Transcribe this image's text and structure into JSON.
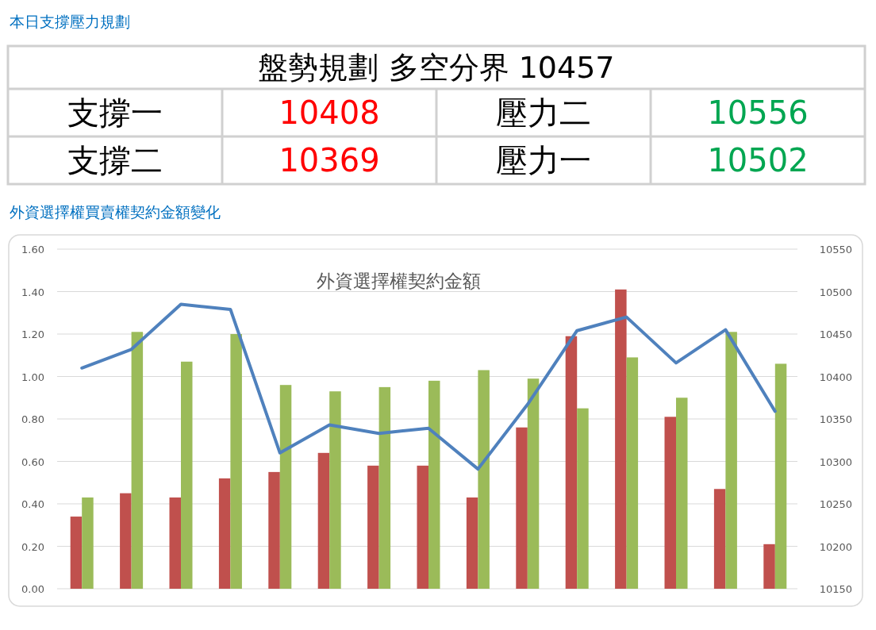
{
  "chart_data": [
    {
      "type": "other",
      "title": "本日支撐壓力規劃",
      "annotations": [
        "盤勢規劃 多空分界 10457",
        "支撐一",
        "10408",
        "壓力二",
        "10556",
        "支撐二",
        "10369",
        "壓力一",
        "10502"
      ],
      "colors": [
        "#000000",
        "#000000",
        "#ff0000",
        "#000000",
        "#00a651",
        "#000000",
        "#ff0000",
        "#000000",
        "#00a651"
      ]
    },
    {
      "type": "bar",
      "title": "外資選擇權買賣權契約金額變化",
      "subtitle": "外資選擇權契約金額",
      "categories": [
        null,
        null,
        null,
        null,
        null,
        null,
        null,
        null,
        null,
        null,
        null,
        null,
        null,
        null,
        null
      ],
      "series": [
        {
          "color": "#c0504d",
          "values": [
            0.34,
            0.45,
            0.43,
            0.52,
            0.55,
            0.64,
            0.58,
            0.58,
            0.43,
            0.76,
            1.19,
            1.41,
            0.81,
            0.47,
            0.21
          ]
        },
        {
          "color": "#9bbb59",
          "values": [
            0.43,
            1.21,
            1.07,
            1.2,
            0.96,
            0.93,
            0.95,
            0.98,
            1.03,
            0.99,
            0.85,
            1.09,
            0.9,
            1.21,
            1.06
          ]
        },
        {
          "type": "line",
          "axis": "y2",
          "color": "#4f81bd",
          "values": [
            10410,
            10432,
            10485,
            10479,
            10310,
            10343,
            10333,
            10339,
            10291,
            10367,
            10454,
            10470,
            10416,
            10455,
            10359
          ]
        }
      ],
      "ylim": [
        0,
        1.6
      ],
      "yticks": [
        {
          "value": 0,
          "label": "0.00"
        },
        {
          "value": 0.2,
          "label": "0.20"
        },
        {
          "value": 0.4,
          "label": "0.40"
        },
        {
          "value": 0.6,
          "label": "0.60"
        },
        {
          "value": 0.8,
          "label": "0.80"
        },
        {
          "value": 1.0,
          "label": "1.00"
        },
        {
          "value": 1.2,
          "label": "1.20"
        },
        {
          "value": 1.4,
          "label": "1.40"
        },
        {
          "value": 1.6,
          "label": "1.60"
        }
      ],
      "y2lim": [
        10150,
        10550
      ],
      "y2ticks": [
        10150,
        10200,
        10250,
        10300,
        10350,
        10400,
        10450,
        10500,
        10550
      ],
      "grid": "y"
    }
  ]
}
